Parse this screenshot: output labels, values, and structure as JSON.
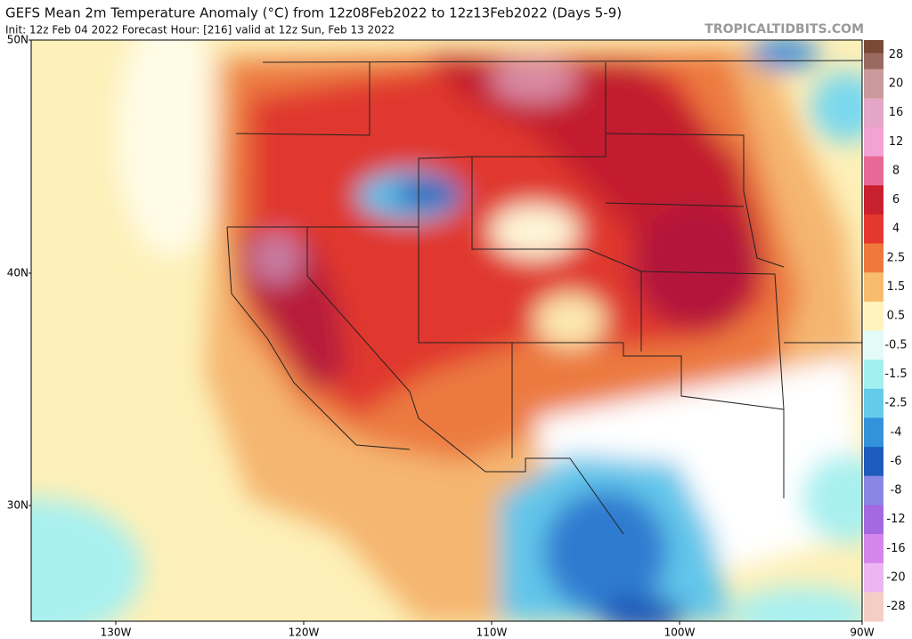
{
  "header": {
    "title": "GEFS Mean 2m Temperature Anomaly (°C) from 12z08Feb2022 to 12z13Feb2022 (Days 5-9)",
    "subtitle": "Init: 12z Feb 04 2022   Forecast Hour: [216]   valid at 12z Sun, Feb 13 2022",
    "site": "TROPICALTIDBITS.COM"
  },
  "map": {
    "lat_labels": [
      "50N",
      "40N",
      "30N"
    ],
    "lon_labels": [
      "130W",
      "120W",
      "110W",
      "100W",
      "90W"
    ]
  },
  "colorbar": {
    "labels": [
      28,
      20,
      16,
      12,
      8,
      6,
      4,
      2.5,
      1.5,
      0.5,
      -0.5,
      -1.5,
      -2.5,
      -4,
      -6,
      -8,
      -12,
      -16,
      -20,
      -28
    ],
    "colors": [
      "#9a6a60",
      "#c9999b",
      "#e3a6c6",
      "#f3a2d6",
      "#e76a96",
      "#c8202e",
      "#e4382e",
      "#f0783c",
      "#f8bc6e",
      "#fff2bc",
      "#e2fbf8",
      "#a4f0f0",
      "#64cbea",
      "#3492da",
      "#1d5cbc",
      "#8888e4",
      "#a468e0",
      "#d486ea",
      "#ecb6f2",
      "#f4cec4"
    ]
  }
}
